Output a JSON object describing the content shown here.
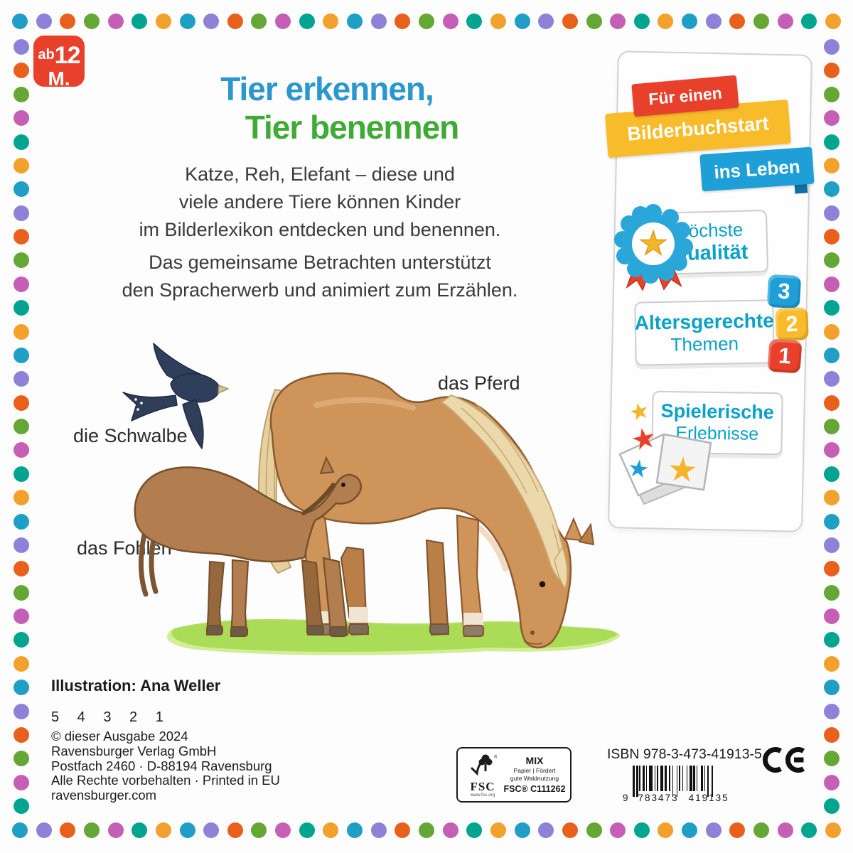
{
  "meta": {
    "type": "book-back-cover",
    "publisher_brand_colors": {
      "red": "#e8402a",
      "yellow": "#f8bb2a",
      "blue": "#1e9fd8",
      "teal_text": "#0aa2c8",
      "title_blue": "#2a97ce",
      "title_green": "#3faa35"
    }
  },
  "border": {
    "dot_colors": [
      "#1f9fc6",
      "#8d82d8",
      "#e8601c",
      "#64a734",
      "#c55fb6",
      "#00a48f",
      "#f2a12c"
    ]
  },
  "age_badge": {
    "ab": "ab",
    "months": "12",
    "m": "M."
  },
  "title": {
    "line1": "Tier erkennen,",
    "line2": "Tier benennen"
  },
  "intro": {
    "lines": [
      "Katze, Reh, Elefant – diese und",
      "viele andere Tiere können Kinder",
      "im Bilderlexikon entdecken und benennen."
    ]
  },
  "intro2": {
    "lines": [
      "Das gemeinsame Betrachten unterstützt",
      "den Spracherwerb und animiert zum Erzählen."
    ]
  },
  "labels": {
    "swallow": "die Schwalbe",
    "horse": "das Pferd",
    "foal": "das Fohlen"
  },
  "panel": {
    "ribbon1": "Für einen",
    "ribbon2": "Bilderbuchstart",
    "ribbon3": "ins Leben",
    "quality_line1": "Höchste",
    "quality_line2": "Qualität",
    "themes_line1": "Altersgerechte",
    "themes_line2": "Themen",
    "blocks": [
      "3",
      "2",
      "1"
    ],
    "play_line1": "Spielerische",
    "play_line2": "Erlebnisse"
  },
  "icons": {
    "star": "★"
  },
  "footer": {
    "credit": "Illustration: Ana Weller",
    "print_run": "5 4 3 2 1",
    "lines": [
      "© dieser Ausgabe 2024",
      "Ravensburger Verlag GmbH",
      "Postfach 2460 · D-88194 Ravensburg",
      "Alle Rechte vorbehalten · Printed in EU",
      "ravensburger.com"
    ]
  },
  "fsc": {
    "acronym": "FSC",
    "url": "www.fsc.org",
    "mix": "MIX",
    "desc1": "Papier | Fördert",
    "desc2": "gute Waldnutzung",
    "code": "FSC® C111262"
  },
  "isbn": {
    "label": "ISBN 978-3-473-41913-5",
    "digit_lead": "9",
    "group1": "783473",
    "group2": "419135"
  }
}
